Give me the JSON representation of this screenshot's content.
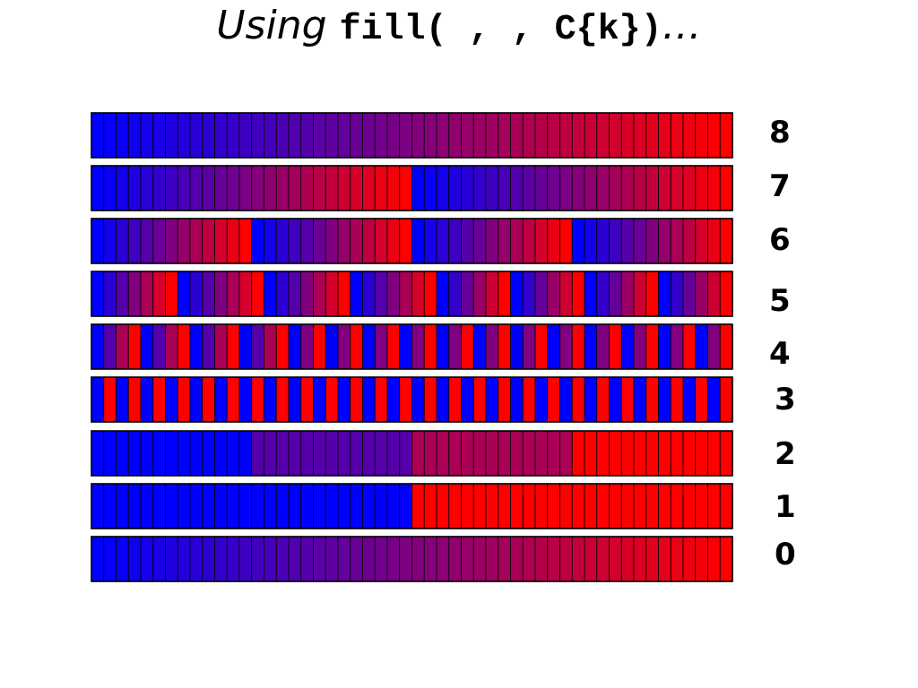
{
  "slide": {
    "title_text": "Using ",
    "title_code": "fill( , , C{k})",
    "title_suffix": "…"
  },
  "colors": {
    "start": "#0000ff",
    "end": "#ff0000",
    "border": "#000000"
  },
  "strips": {
    "cells_per_strip": 52,
    "levels": [
      {
        "label": "8",
        "pattern": "1 run of 52"
      },
      {
        "label": "7",
        "pattern": "2 runs of 26"
      },
      {
        "label": "6",
        "pattern": "runs of 13"
      },
      {
        "label": "5",
        "pattern": "runs of 6-7"
      },
      {
        "label": "4",
        "pattern": "runs of 3-4"
      },
      {
        "label": "3",
        "pattern": "runs of 2"
      },
      {
        "label": "2",
        "pattern": "runs of 4 (interleaved)"
      },
      {
        "label": "1",
        "pattern": "runs of 2 (interleaved)"
      },
      {
        "label": "0",
        "pattern": "1 run of 52"
      }
    ]
  }
}
